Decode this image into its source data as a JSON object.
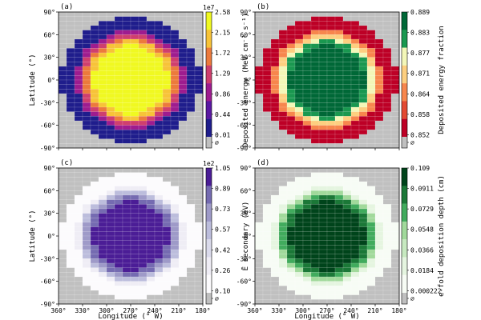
{
  "figure": {
    "xlabel": "Longitude (° W)",
    "ylabel": "Latitude (°)",
    "x_ticks": [
      "360°",
      "330°",
      "300°",
      "270°",
      "240°",
      "210°",
      "180°"
    ],
    "y_ticks": [
      "90°",
      "60°",
      "30°",
      "0°",
      "-30°",
      "-60°",
      "-90°"
    ]
  },
  "chart_data": [
    {
      "type": "heatmap",
      "panel": "(a)",
      "quantity": "Deposited energy",
      "colorbar_label": "Deposited energy (MeV cm⁻² s⁻¹)",
      "colorbar_exponent": "1e7",
      "colorbar_ticks": [
        "2.58",
        "2.15",
        "1.72",
        "1.29",
        "0.86",
        "0.44",
        "0.01",
        "∅"
      ],
      "colors": [
        "#1f1d8c",
        "#5a18a2",
        "#9e1c8f",
        "#cf3f6e",
        "#ec7a3c",
        "#f7c338",
        "#f0f921"
      ],
      "levels": [
        [
          0,
          "∅"
        ],
        [
          1,
          "yellow core"
        ],
        [
          2,
          "orange"
        ],
        [
          3,
          "magenta"
        ],
        [
          4,
          "purple"
        ],
        [
          5,
          "dark purple"
        ],
        [
          6,
          "navy"
        ]
      ],
      "xlim": [
        360,
        180
      ],
      "ylim": [
        -90,
        90
      ],
      "cell_degrees": [
        10,
        6
      ]
    },
    {
      "type": "heatmap",
      "panel": "(b)",
      "quantity": "Deposited energy fraction",
      "colorbar_label": "Deposited energy fraction",
      "colorbar_ticks": [
        "0.889",
        "0.883",
        "0.877",
        "0.871",
        "0.864",
        "0.858",
        "0.852",
        "∅"
      ],
      "colors": [
        "#bd0026",
        "#e34a33",
        "#f7864d",
        "#fdcf80",
        "#f3f7b8",
        "#1a9850",
        "#006837"
      ],
      "xlim": [
        360,
        180
      ],
      "ylim": [
        -90,
        90
      ],
      "cell_degrees": [
        10,
        6
      ]
    },
    {
      "type": "heatmap",
      "panel": "(c)",
      "quantity": "Mean secondary electron energy",
      "colorbar_label": "Ē secondary (eV)",
      "colorbar_exponent": "1e2",
      "colorbar_ticks": [
        "1.05",
        "0.89",
        "0.73",
        "0.57",
        "0.42",
        "0.26",
        "0.10",
        "∅"
      ],
      "colors": [
        "#fcfbfd",
        "#efedf5",
        "#dadaeb",
        "#bcbddc",
        "#9e9ac8",
        "#756bb1",
        "#4b1d96"
      ],
      "xlim": [
        360,
        180
      ],
      "ylim": [
        -90,
        90
      ],
      "cell_degrees": [
        10,
        6
      ]
    },
    {
      "type": "heatmap",
      "panel": "(d)",
      "quantity": "e-fold deposition depth",
      "colorbar_label": "e-fold deposition depth (cm)",
      "colorbar_ticks": [
        "0.109",
        "0.0911",
        "0.0729",
        "0.0548",
        "0.0366",
        "0.0184",
        "0.000222",
        "∅"
      ],
      "colors": [
        "#f7fcf5",
        "#e5f5e0",
        "#c7e9c0",
        "#a1d99b",
        "#41ab5d",
        "#1b7837",
        "#00441b"
      ],
      "xlim": [
        360,
        180
      ],
      "ylim": [
        -90,
        90
      ],
      "cell_degrees": [
        10,
        6
      ]
    }
  ]
}
